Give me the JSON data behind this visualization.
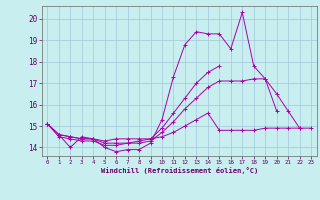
{
  "title": "",
  "xlabel": "Windchill (Refroidissement éolien,°C)",
  "ylabel": "",
  "background_color": "#c8eef0",
  "grid_color": "#a0c8d8",
  "line_color": "#aa00aa",
  "xlim": [
    -0.5,
    23.5
  ],
  "ylim": [
    13.6,
    20.6
  ],
  "xticks": [
    0,
    1,
    2,
    3,
    4,
    5,
    6,
    7,
    8,
    9,
    10,
    11,
    12,
    13,
    14,
    15,
    16,
    17,
    18,
    19,
    20,
    21,
    22,
    23
  ],
  "yticks": [
    14,
    15,
    16,
    17,
    18,
    19,
    20
  ],
  "series": [
    {
      "x": [
        0,
        1,
        2,
        3,
        4,
        5,
        6,
        7,
        8,
        9,
        10,
        11,
        12,
        13,
        14,
        15,
        16,
        17,
        18,
        19,
        20,
        21,
        22
      ],
      "y": [
        15.1,
        14.6,
        14.0,
        14.5,
        14.4,
        14.0,
        13.8,
        13.9,
        13.9,
        14.2,
        15.3,
        17.3,
        18.8,
        19.4,
        19.3,
        19.3,
        18.6,
        20.3,
        17.8,
        17.2,
        16.5,
        15.7,
        14.9
      ]
    },
    {
      "x": [
        0,
        1,
        2,
        3,
        4,
        5,
        6,
        7,
        8,
        9,
        10,
        11,
        12,
        13,
        14,
        15,
        16,
        17,
        18,
        19,
        20,
        21,
        22,
        23
      ],
      "y": [
        15.1,
        14.6,
        14.5,
        14.4,
        14.4,
        14.3,
        14.4,
        14.4,
        14.4,
        14.4,
        14.5,
        14.7,
        15.0,
        15.3,
        15.6,
        14.8,
        14.8,
        14.8,
        14.8,
        14.9,
        14.9,
        14.9,
        14.9,
        14.9
      ]
    },
    {
      "x": [
        0,
        1,
        2,
        3,
        4,
        5,
        6,
        7,
        8,
        9,
        10,
        11,
        12,
        13,
        14,
        15,
        16,
        17,
        18,
        19,
        20
      ],
      "y": [
        15.1,
        14.6,
        14.5,
        14.4,
        14.4,
        14.2,
        14.2,
        14.2,
        14.2,
        14.3,
        14.7,
        15.2,
        15.8,
        16.3,
        16.8,
        17.1,
        17.1,
        17.1,
        17.2,
        17.2,
        15.7
      ]
    },
    {
      "x": [
        0,
        1,
        2,
        3,
        4,
        5,
        6,
        7,
        8,
        9,
        10,
        11,
        12,
        13,
        14,
        15
      ],
      "y": [
        15.1,
        14.5,
        14.4,
        14.3,
        14.3,
        14.1,
        14.1,
        14.2,
        14.3,
        14.4,
        14.9,
        15.6,
        16.3,
        17.0,
        17.5,
        17.8
      ]
    }
  ]
}
